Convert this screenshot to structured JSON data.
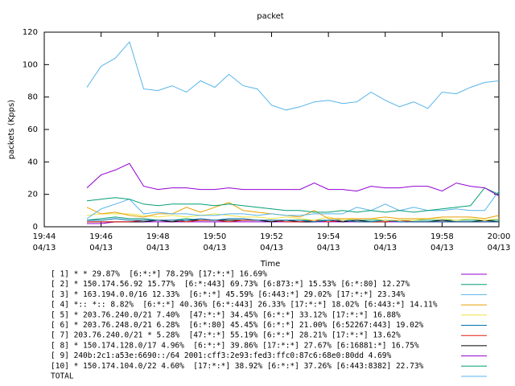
{
  "chart_data": {
    "type": "line",
    "title": "packet",
    "x_label": "Time",
    "y_label": "packets (Kpps)",
    "x": [
      1185.5,
      1186,
      1186.5,
      1187,
      1187.5,
      1188,
      1188.5,
      1189,
      1189.5,
      1190,
      1190.5,
      1191,
      1191.5,
      1192,
      1192.5,
      1193,
      1193.5,
      1194,
      1194.5,
      1195,
      1195.5,
      1196,
      1196.5,
      1197,
      1197.5,
      1198,
      1198.5,
      1199,
      1199.5,
      1200
    ],
    "xlim": [
      1184,
      1200
    ],
    "xticks": [
      {
        "value": 1184,
        "label": "19:44\n04/13"
      },
      {
        "value": 1186,
        "label": "19:46\n04/13"
      },
      {
        "value": 1188,
        "label": "19:48\n04/13"
      },
      {
        "value": 1190,
        "label": "19:50\n04/13"
      },
      {
        "value": 1192,
        "label": "19:52\n04/13"
      },
      {
        "value": 1194,
        "label": "19:54\n04/13"
      },
      {
        "value": 1196,
        "label": "19:56\n04/13"
      },
      {
        "value": 1198,
        "label": "19:58\n04/13"
      },
      {
        "value": 1200,
        "label": "20:00\n04/13"
      }
    ],
    "ylim": [
      0,
      120
    ],
    "yticks": [
      0,
      20,
      40,
      60,
      80,
      100,
      120
    ],
    "grid": false,
    "series": [
      {
        "name": "[ 1] * * 29.87%  [6:*:*] 78.29% [17:*:*] 16.69%",
        "color": "#9400d3",
        "values": [
          24,
          32,
          35,
          39,
          25,
          23,
          24,
          24,
          23,
          23,
          24,
          23,
          23,
          23,
          23,
          23,
          27,
          23,
          23,
          22,
          25,
          24,
          24,
          25,
          25,
          22,
          27,
          25,
          24,
          19
        ]
      },
      {
        "name": "[ 2] * 150.174.56.92 15.77%  [6:*:443] 69.73% [6:873:*] 15.53% [6:*:80] 12.27%",
        "color": "#009e73",
        "values": [
          16,
          17,
          18,
          17,
          14,
          13,
          14,
          14,
          14,
          13,
          14,
          13,
          12,
          11,
          10,
          10,
          9,
          9,
          10,
          9,
          10,
          9,
          10,
          9,
          10,
          11,
          12,
          13,
          24,
          20
        ]
      },
      {
        "name": "[ 3] * 163.194.0.0/16 12.33%  [6:*:*] 45.59% [6:443:*] 29.02% [17:*:*] 23.34%",
        "color": "#56b4e9",
        "values": [
          5,
          11,
          14,
          17,
          8,
          9,
          8,
          8,
          7,
          7,
          8,
          8,
          7,
          8,
          7,
          7,
          8,
          8,
          8,
          12,
          10,
          14,
          10,
          12,
          10,
          10,
          11,
          10,
          10,
          22
        ]
      },
      {
        "name": "[ 4] *:: *:: 8.82%  [6:*:*] 40.36% [6:*:443] 26.33% [17:*:*] 18.02% [6:443:*] 14.11%",
        "color": "#e69f00",
        "values": [
          12,
          8,
          9,
          7,
          6,
          8,
          8,
          12,
          9,
          12,
          15,
          10,
          9,
          8,
          7,
          6,
          10,
          5,
          5,
          5,
          5,
          6,
          5,
          5,
          5,
          6,
          6,
          6,
          5,
          7
        ]
      },
      {
        "name": "[ 5] * 203.76.240.0/21 7.40%  [47:*:*] 34.45% [6:*:*] 33.12% [17:*:*] 16.88%",
        "color": "#f0e442",
        "values": [
          7,
          8,
          8,
          8,
          7,
          6,
          7,
          6,
          7,
          8,
          7,
          6,
          6,
          5,
          6,
          5,
          4,
          6,
          4,
          5,
          5,
          4,
          4,
          4,
          5,
          5,
          4,
          5,
          4,
          5
        ]
      },
      {
        "name": "[ 6] * 203.76.248.0/21 6.28%  [6:*:80] 45.45% [6:*:*] 21.00% [6:52267:443] 19.02%",
        "color": "#0072b2",
        "values": [
          4,
          4,
          5,
          4,
          4,
          4,
          4,
          4,
          5,
          4,
          5,
          5,
          4,
          4,
          4,
          4,
          3,
          4,
          4,
          3,
          3,
          4,
          3,
          3,
          3,
          3,
          3,
          3,
          3,
          3
        ]
      },
      {
        "name": "[ 7] 203.76.240.0/21 * 5.28%  [47:*:*] 55.19% [6:*:*] 28.21% [17:*:*] 13.62%",
        "color": "#e51e10",
        "values": [
          3,
          3,
          3,
          3,
          4,
          4,
          4,
          3,
          4,
          4,
          3,
          4,
          4,
          4,
          3,
          3,
          4,
          3,
          4,
          3,
          3,
          3,
          4,
          3,
          3,
          3,
          3,
          3,
          3,
          3
        ]
      },
      {
        "name": "[ 8] * 150.174.128.0/17 4.96%  [6:*:*] 39.86% [17:*:*] 27.67% [6:16881:*] 16.75%",
        "color": "#000000",
        "values": [
          3,
          3,
          3,
          3,
          3,
          4,
          3,
          4,
          4,
          4,
          4,
          4,
          4,
          3,
          4,
          3,
          3,
          4,
          3,
          4,
          3,
          3,
          4,
          3,
          3,
          4,
          3,
          3,
          4,
          3
        ]
      },
      {
        "name": "[ 9] 240b:2c1:a53e:6690::/64 2001:cff3:2e93:fed3:ffc0:87c6:68e0:80dd 4.69%",
        "color": "#9400d3",
        "values": [
          2,
          2,
          3,
          3,
          3,
          3,
          3,
          3,
          3,
          3,
          3,
          3,
          3,
          3,
          3,
          3,
          3,
          3,
          3,
          3,
          3,
          3,
          3,
          3,
          3,
          3,
          3,
          3,
          3,
          3
        ]
      },
      {
        "name": "[10] * 150.174.104.0/22 4.60%  [17:*:*] 38.92% [6:*:*] 37.26% [6:443:8382] 22.73%",
        "color": "#009e73",
        "values": [
          4,
          5,
          6,
          5,
          5,
          4,
          4,
          5,
          4,
          4,
          4,
          4,
          4,
          4,
          4,
          4,
          4,
          4,
          4,
          4,
          4,
          4,
          4,
          4,
          4,
          4,
          4,
          4,
          4,
          4
        ]
      },
      {
        "name": "TOTAL",
        "color": "#56b4e9",
        "values": [
          86,
          99,
          104,
          114,
          85,
          84,
          87,
          83,
          90,
          86,
          94,
          87,
          85,
          75,
          72,
          74,
          77,
          78,
          76,
          77,
          83,
          78,
          74,
          77,
          73,
          83,
          82,
          86,
          89,
          90
        ]
      }
    ]
  }
}
